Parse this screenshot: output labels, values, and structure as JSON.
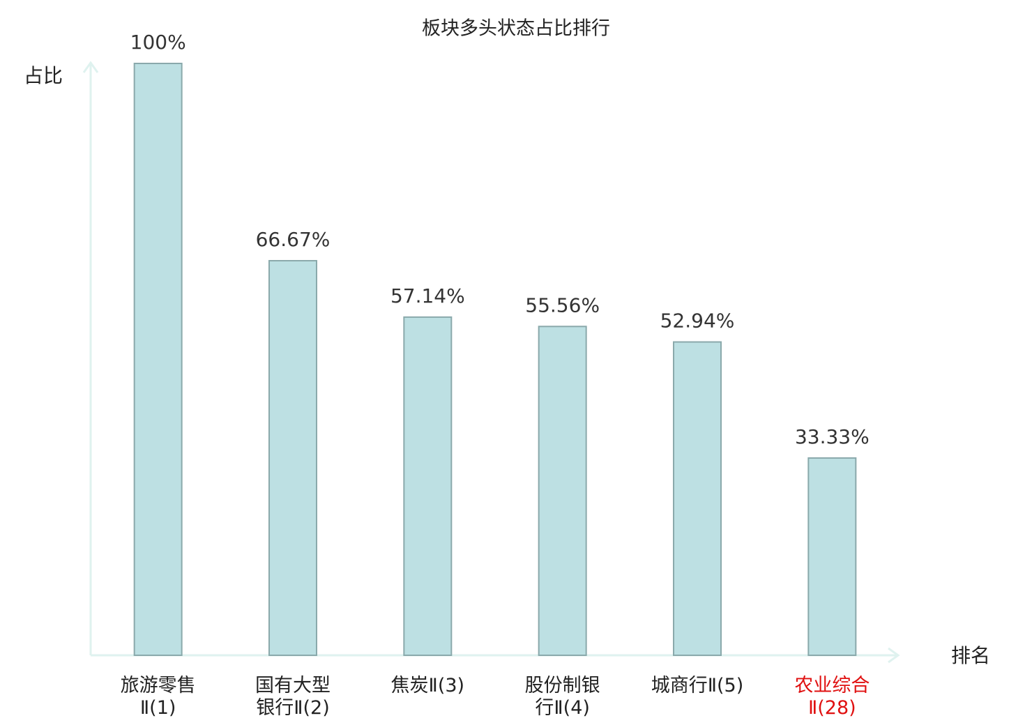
{
  "chart_data": {
    "type": "bar",
    "title": "板块多头状态占比排行",
    "y_label": "占比",
    "x_label": "排名",
    "categories": [
      "旅游零售Ⅱ(1)",
      "国有大型银行Ⅱ(2)",
      "焦炭Ⅱ(3)",
      "股份制银行Ⅱ(4)",
      "城商行Ⅱ(5)",
      "农业综合Ⅱ(28)"
    ],
    "category_colors": [
      "#222222",
      "#222222",
      "#222222",
      "#222222",
      "#222222",
      "#e01010"
    ],
    "values": [
      100,
      66.67,
      57.14,
      55.56,
      52.94,
      33.33
    ],
    "value_labels": [
      "100%",
      "66.67%",
      "57.14%",
      "55.56%",
      "52.94%",
      "33.33%"
    ],
    "color": "#bde0e3",
    "edge_color": "#8aa9ab",
    "ylim": [
      0,
      100
    ]
  }
}
